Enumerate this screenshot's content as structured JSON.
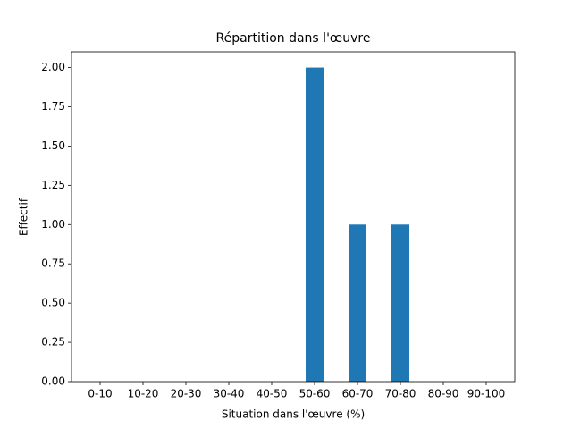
{
  "chart_data": {
    "type": "bar",
    "title": "Répartition dans l'œuvre",
    "x_label": "Situation dans l'œuvre (%)",
    "y_label": "Effectif",
    "categories": [
      "0-10",
      "10-20",
      "20-30",
      "30-40",
      "40-50",
      "50-60",
      "60-70",
      "70-80",
      "80-90",
      "90-100"
    ],
    "values": [
      0,
      0,
      0,
      0,
      0,
      2,
      1,
      1,
      0,
      0
    ],
    "color": "#1f77b4",
    "ylim": [
      0,
      2.1
    ],
    "yticks": [
      {
        "value": 0,
        "label": "0.00"
      },
      {
        "value": 0.25,
        "label": "0.25"
      },
      {
        "value": 0.5,
        "label": "0.50"
      },
      {
        "value": 0.75,
        "label": "0.75"
      },
      {
        "value": 1,
        "label": "1.00"
      },
      {
        "value": 1.25,
        "label": "1.25"
      },
      {
        "value": 1.5,
        "label": "1.50"
      },
      {
        "value": 1.75,
        "label": "1.75"
      },
      {
        "value": 2,
        "label": "2.00"
      }
    ],
    "grid": false
  }
}
